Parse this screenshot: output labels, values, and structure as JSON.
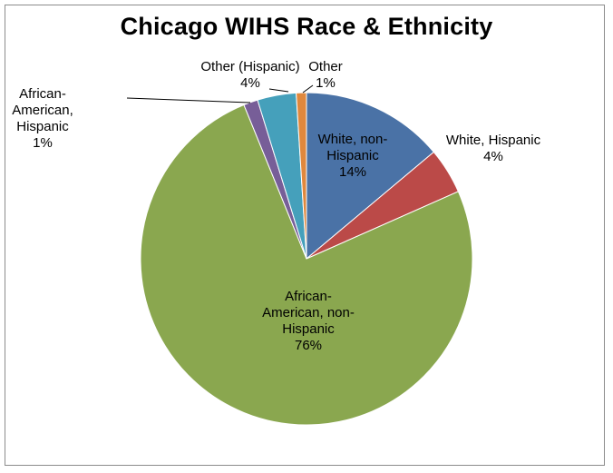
{
  "chart_data": {
    "type": "pie",
    "title": "Chicago WIHS Race & Ethnicity",
    "slices": [
      {
        "label_lines": [
          "White, non-",
          "Hispanic",
          "14%"
        ],
        "value": 14,
        "color": "#4a72a6"
      },
      {
        "label_lines": [
          "White, Hispanic",
          "4%"
        ],
        "value": 4.5,
        "color": "#bb4a48"
      },
      {
        "label_lines": [
          "African-",
          "American, non-",
          "Hispanic",
          "76%"
        ],
        "value": 76,
        "color": "#8aa74f"
      },
      {
        "label_lines": [
          "African-",
          "American,",
          "Hispanic",
          "1%"
        ],
        "value": 1.4,
        "color": "#775e98"
      },
      {
        "label_lines": [
          "Other (Hispanic)",
          "4%"
        ],
        "value": 3.8,
        "color": "#45a0bb"
      },
      {
        "label_lines": [
          "Other",
          "1%"
        ],
        "value": 1.0,
        "color": "#e0883d"
      }
    ]
  }
}
